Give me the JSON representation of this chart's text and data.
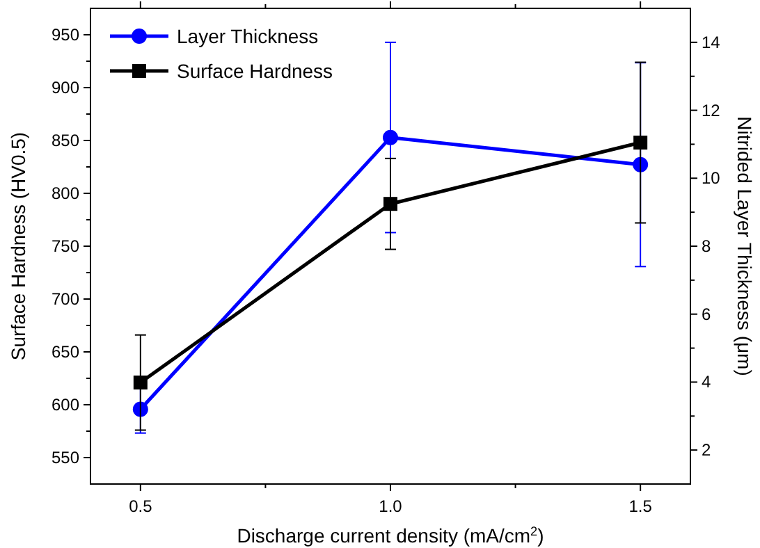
{
  "chart_data": {
    "type": "line",
    "xlabel": "Discharge current density (mA/cm$^{2}$)",
    "ylabel": "Surface Hardness (HV0.5)",
    "y2label": "Nitrided Layer Thickness (μm)",
    "x": [
      0.5,
      1.0,
      1.5
    ],
    "xlim": [
      0.4,
      1.6
    ],
    "xticks": [
      {
        "value": 0.5,
        "label": "0.5"
      },
      {
        "value": 0.75,
        "label": null
      },
      {
        "value": 1.0,
        "label": "1.0"
      },
      {
        "value": 1.25,
        "label": null
      },
      {
        "value": 1.5,
        "label": "1.5"
      }
    ],
    "ylim": [
      525,
      975
    ],
    "yticks": [
      550,
      {
        "value": 575,
        "label": null
      },
      600,
      {
        "value": 625,
        "label": null
      },
      650,
      {
        "value": 675,
        "label": null
      },
      700,
      {
        "value": 725,
        "label": null
      },
      750,
      {
        "value": 775,
        "label": null
      },
      800,
      {
        "value": 825,
        "label": null
      },
      850,
      {
        "value": 875,
        "label": null
      },
      900,
      {
        "value": 925,
        "label": null
      },
      950
    ],
    "y2lim": [
      1,
      15
    ],
    "y2ticks": [
      2,
      {
        "value": 3,
        "label": null
      },
      4,
      {
        "value": 5,
        "label": null
      },
      6,
      {
        "value": 7,
        "label": null
      },
      8,
      {
        "value": 9,
        "label": null
      },
      10,
      {
        "value": 11,
        "label": null
      },
      12,
      {
        "value": 13,
        "label": null
      },
      14
    ],
    "series": [
      {
        "name": "Layer Thickness",
        "color": "#0000ff",
        "axis": "y2",
        "marker": "circle",
        "values": [
          3.2,
          11.2,
          10.4
        ],
        "errors": [
          0.7,
          2.8,
          3.0
        ]
      },
      {
        "name": "Surface Hardness",
        "color": "#000000",
        "axis": "y",
        "marker": "square",
        "values": [
          621,
          790,
          848
        ],
        "errors": [
          45,
          43,
          76
        ]
      }
    ],
    "legend": "top left",
    "grid": false
  }
}
